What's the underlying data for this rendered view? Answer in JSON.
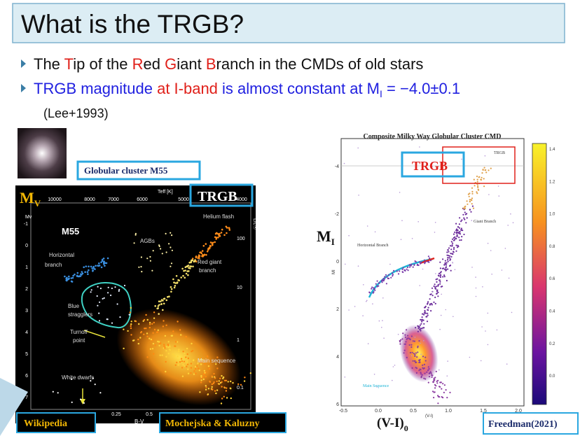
{
  "header": {
    "title": "What is the TRGB?"
  },
  "bullets": [
    {
      "parts": [
        "The ",
        "T",
        "ip of the ",
        "R",
        "ed ",
        "G",
        "iant ",
        "B",
        "ranch  in the CMDs of old stars"
      ]
    },
    {
      "parts": [
        "TRGB magnitude ",
        "at I-band",
        " is almost constant at M",
        "I",
        " = −4.0±0.1"
      ]
    }
  ],
  "citation": "(Lee+1993)",
  "left_figure": {
    "caption": "Globular cluster M55",
    "axis_label": [
      "M",
      "V"
    ],
    "callout": "TRGB",
    "cluster": "M55",
    "teff_label": "Teff [K]",
    "top_ticks": [
      "10000",
      "8000",
      "7000",
      "6000",
      "5000",
      "4000"
    ],
    "left_label": "Mv",
    "left_ticks": [
      "-1",
      "0",
      "1",
      "2",
      "3",
      "4",
      "5",
      "6",
      "7",
      "8"
    ],
    "right_label": "L/L☉",
    "right_ticks": [
      "100",
      "10",
      "1",
      "0.1"
    ],
    "bottom_ticks": [
      "-0.25",
      "0",
      "0.25",
      "0.5",
      "1"
    ],
    "bottom_label": "B-V",
    "annotations": [
      "Helium flash",
      "AGBs",
      "Horizontal",
      "branch",
      "Red giant",
      "branch",
      "Blue",
      "stragglers",
      "Turnoff",
      "point",
      "Main sequence",
      "White dwarfs"
    ],
    "credit_left": "Wikipedia",
    "credit_right": "Mochejska & Kaluzny"
  },
  "right_figure": {
    "title": "Composite Milky Way Globular Cluster CMD",
    "callout": "TRGB",
    "box_label": "TRGB",
    "y_label": [
      "M",
      "I"
    ],
    "y_label_small": "MI",
    "y_ticks": [
      "-4",
      "-2",
      "0",
      "2",
      "4",
      "6"
    ],
    "x_ticks": [
      "-0.5",
      "0.0",
      "0.5",
      "1.0",
      "1.5",
      "2.0"
    ],
    "x_label": [
      "(V-I)",
      "0"
    ],
    "x_label_small": "(V-I)",
    "colorbar_ticks": [
      "1.4",
      "1.2",
      "1.0",
      "0.8",
      "0.6",
      "0.4",
      "0.2",
      "0.0"
    ],
    "annotations": [
      "Giant Branch",
      "Horizontal Branch",
      "Main Sequence"
    ],
    "credit": "Freedman(2021)"
  }
}
